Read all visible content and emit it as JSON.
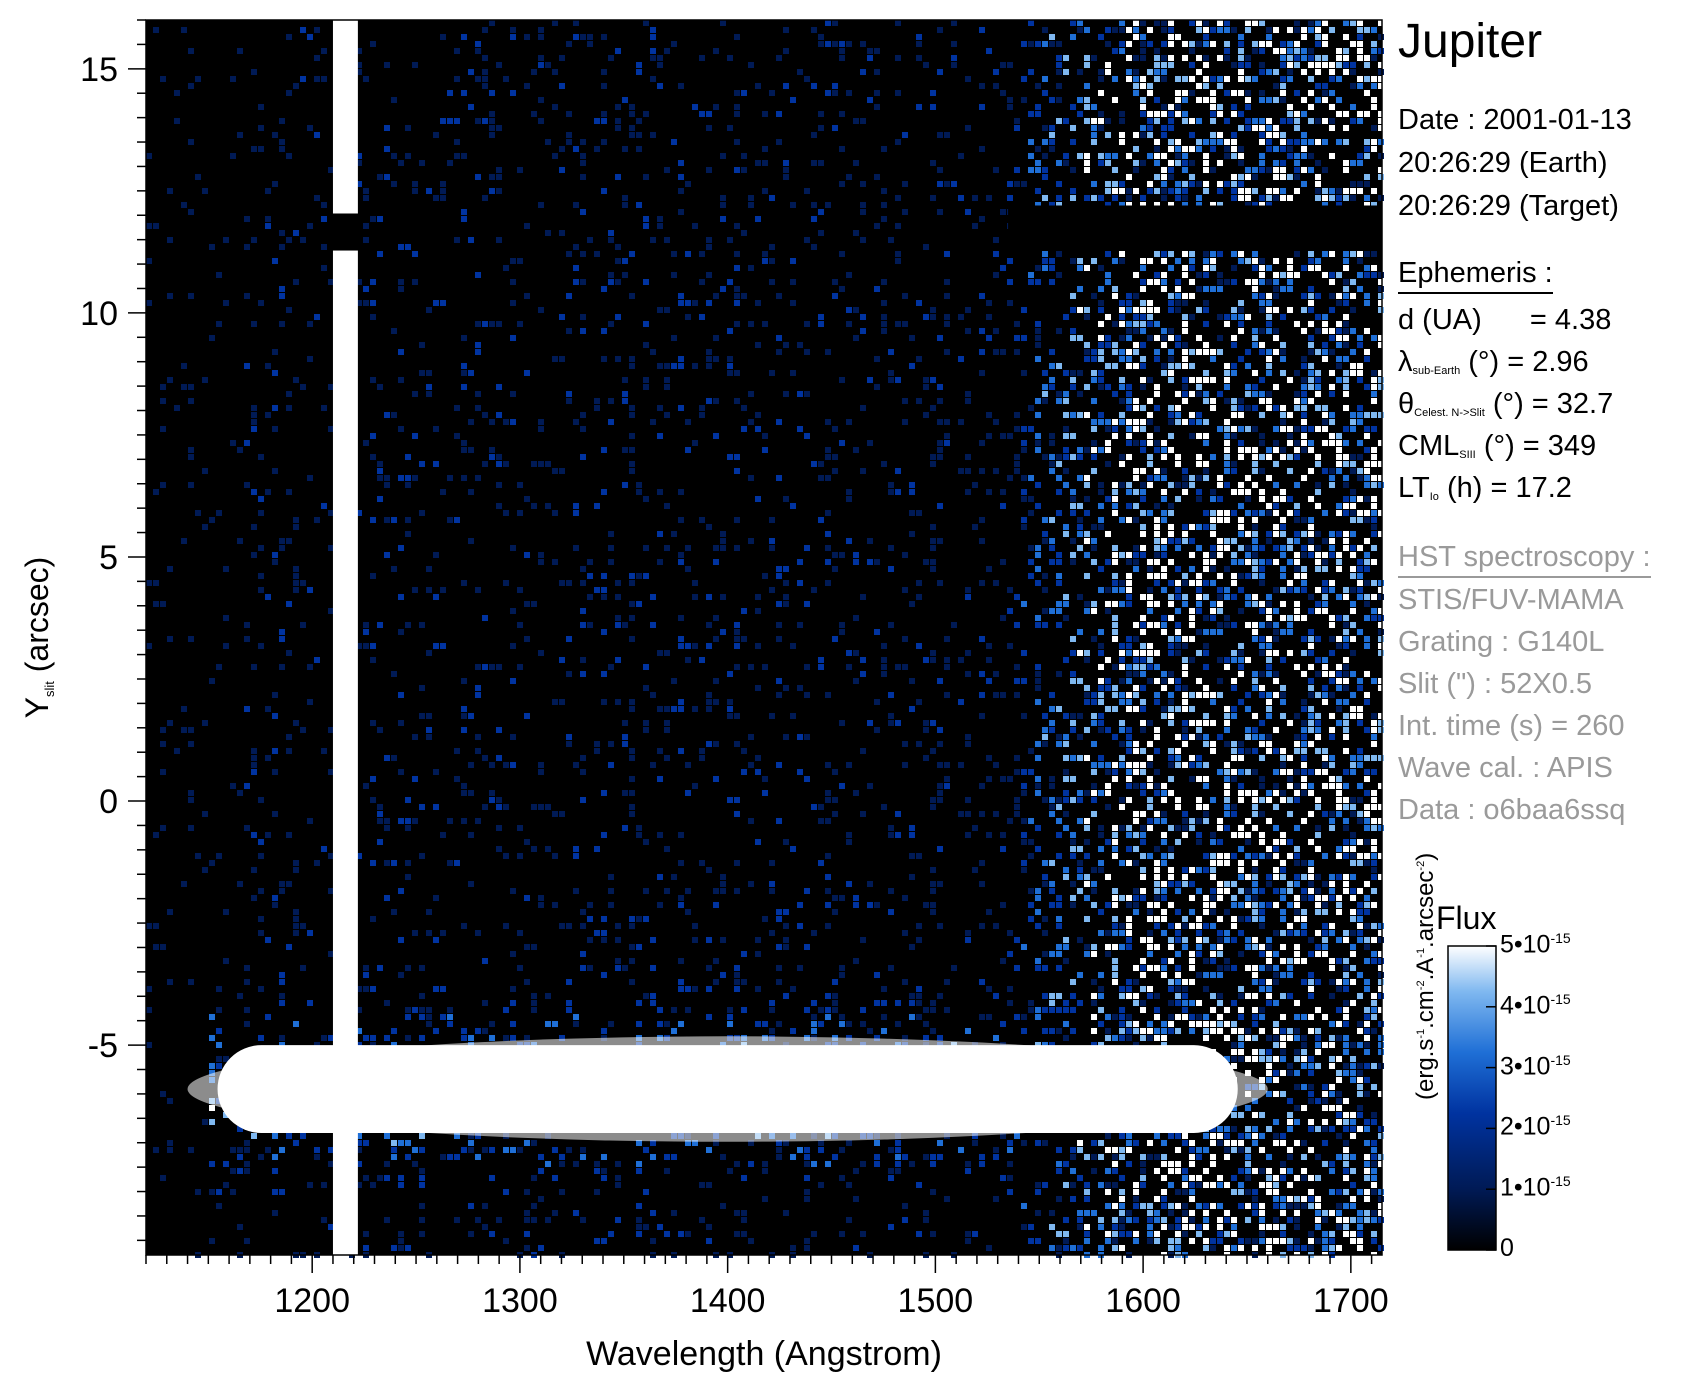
{
  "chart_data": {
    "type": "heatmap",
    "title": "Jupiter",
    "xlabel": "Wavelength (Angstrom)",
    "ylabel": "Y (arcsec)",
    "ylabel_subscript": "slit",
    "xlim": [
      1120,
      1715
    ],
    "ylim": [
      -9.3,
      16.0
    ],
    "x_ticks": [
      1200,
      1300,
      1400,
      1500,
      1600,
      1700
    ],
    "y_ticks": [
      -5,
      0,
      5,
      10,
      15
    ],
    "x_tick_labels": [
      "1200",
      "1300",
      "1400",
      "1500",
      "1600",
      "1700"
    ],
    "y_tick_labels": [
      "-5",
      "0",
      "5",
      "10",
      "15"
    ],
    "features": {
      "lyman_alpha_band": {
        "x_range": [
          1210,
          1222
        ]
      },
      "planet_band": {
        "y_center": -5.9,
        "y_halfwidth": 0.9,
        "x_range": [
          1140,
          1660
        ]
      },
      "dark_stripe": {
        "y_range": [
          11.4,
          12.2
        ],
        "x_range": [
          1535,
          1715
        ]
      },
      "bright_region_start": 1540
    },
    "colorbar": {
      "title": "Flux",
      "label": "(erg.s-1.cm-2.A-1.arcsec-2)",
      "range": [
        0,
        5e-15
      ],
      "ticks": [
        0,
        1e-15,
        2e-15,
        3e-15,
        4e-15,
        5e-15
      ],
      "tick_labels": [
        {
          "mant": "0",
          "exp": ""
        },
        {
          "mant": "1•10",
          "exp": "-15"
        },
        {
          "mant": "2•10",
          "exp": "-15"
        },
        {
          "mant": "3•10",
          "exp": "-15"
        },
        {
          "mant": "4•10",
          "exp": "-15"
        },
        {
          "mant": "5•10",
          "exp": "-15"
        }
      ],
      "colors": [
        "#000000",
        "#001a55",
        "#0033a0",
        "#1f6fd6",
        "#7fb8f0",
        "#ffffff"
      ]
    }
  },
  "info": {
    "target": "Jupiter",
    "date_line": "Date : 2001-01-13",
    "earth_line": "20:26:29 (Earth)",
    "target_line": "20:26:29 (Target)",
    "ephemeris_header": "Ephemeris :",
    "d_label": "d (UA)",
    "d_value": "= 4.38",
    "lambda_sub": "sub-Earth",
    "lambda_value": "(°)  = 2.96",
    "theta_sub": "Celest. N->Slit",
    "theta_value": "(°) = 32.7",
    "cml_sub": "SIII",
    "cml_value": "(°) = 349",
    "lt_sub": "Io",
    "lt_value": "(h) = 17.2",
    "hst_header": "HST spectroscopy :",
    "instrument": "STIS/FUV-MAMA",
    "grating": "Grating : G140L",
    "slit": "Slit (\") : 52X0.5",
    "int_time": "Int. time (s) = 260",
    "wave_cal": "Wave cal. : APIS",
    "data_id": "Data : o6baa6ssq"
  }
}
